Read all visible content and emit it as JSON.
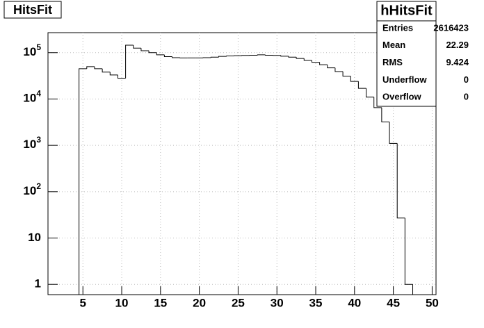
{
  "chart_data": {
    "type": "histogram",
    "title": "HitsFit",
    "bins": [
      0.5,
      1.5,
      2.5,
      3.5,
      4.5,
      5.5,
      6.5,
      7.5,
      8.5,
      9.5,
      10.5,
      11.5,
      12.5,
      13.5,
      14.5,
      15.5,
      16.5,
      17.5,
      18.5,
      19.5,
      20.5,
      21.5,
      22.5,
      23.5,
      24.5,
      25.5,
      26.5,
      27.5,
      28.5,
      29.5,
      30.5,
      31.5,
      32.5,
      33.5,
      34.5,
      35.5,
      36.5,
      37.5,
      38.5,
      39.5,
      40.5,
      41.5,
      42.5,
      43.5,
      44.5,
      45.5,
      46.5,
      47.5,
      48.5,
      49.5,
      50.5
    ],
    "counts": [
      0,
      0,
      0,
      0,
      45000,
      50000,
      45000,
      38000,
      33000,
      28000,
      145000,
      125000,
      110000,
      100000,
      90000,
      82000,
      78000,
      77000,
      77000,
      77000,
      78000,
      80000,
      83000,
      85000,
      86000,
      87000,
      88000,
      90000,
      88000,
      87000,
      84000,
      80000,
      75000,
      68000,
      62000,
      55000,
      47000,
      39000,
      31000,
      24000,
      17000,
      11000,
      6500,
      3200,
      1100,
      27,
      1,
      0,
      0,
      0
    ],
    "color": "#000000",
    "xlim": [
      0.5,
      50.5
    ],
    "xticks": [
      5,
      10,
      15,
      20,
      25,
      30,
      35,
      40,
      45,
      50
    ],
    "ylim": [
      0.6,
      270000
    ],
    "log_y": true,
    "grid": true,
    "yticks": [
      1,
      10,
      {
        "value": 100,
        "label": "10",
        "sup": "2"
      },
      {
        "value": 1000,
        "label": "10",
        "sup": "3"
      },
      {
        "value": 10000,
        "label": "10",
        "sup": "4"
      },
      {
        "value": 100000,
        "label": "10",
        "sup": "5"
      }
    ],
    "stats": {
      "title": "hHitsFit",
      "rows": [
        [
          "Entries",
          "2616423"
        ],
        [
          "Mean",
          "22.29"
        ],
        [
          "RMS",
          "9.424"
        ],
        [
          "Underflow",
          "0"
        ],
        [
          "Overflow",
          "0"
        ]
      ]
    }
  }
}
